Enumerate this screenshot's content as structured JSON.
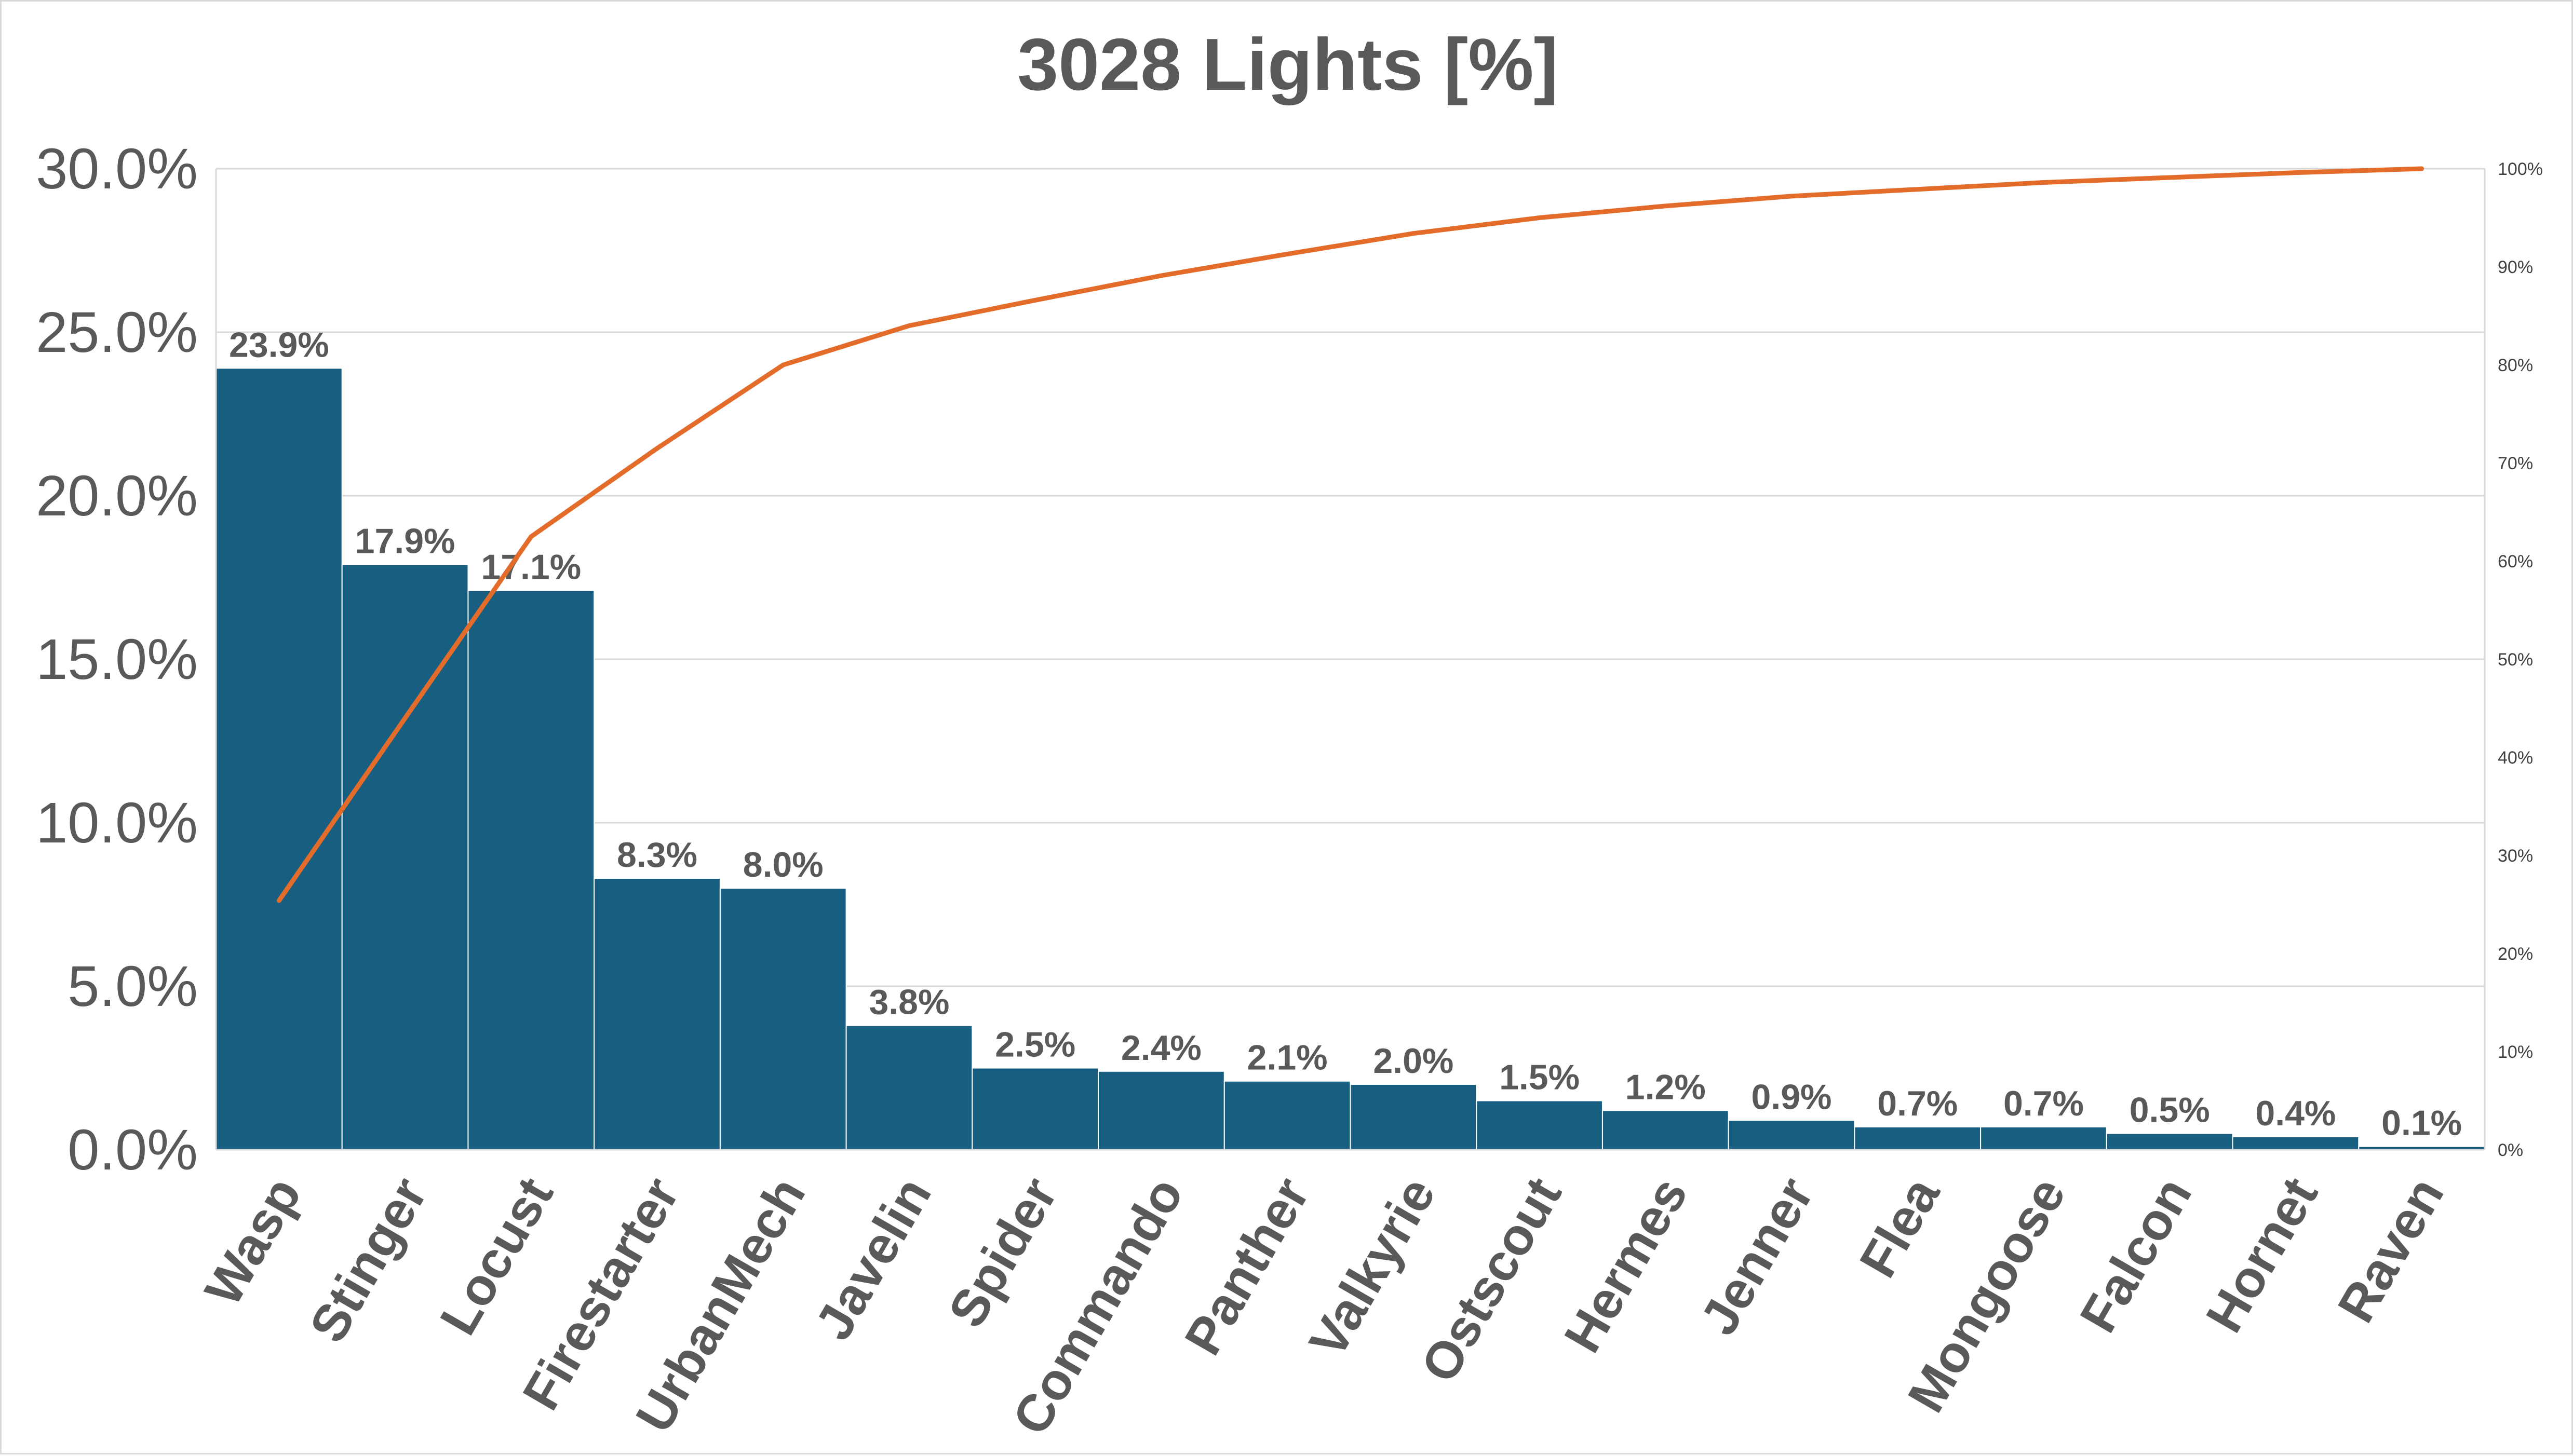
{
  "chart_data": {
    "type": "bar",
    "title": "3028 Lights [%]",
    "categories": [
      "Wasp",
      "Stinger",
      "Locust",
      "Firestarter",
      "UrbanMech",
      "Javelin",
      "Spider",
      "Commando",
      "Panther",
      "Valkyrie",
      "Ostscout",
      "Hermes",
      "Jenner",
      "Flea",
      "Mongoose",
      "Falcon",
      "Hornet",
      "Raven"
    ],
    "values": [
      23.9,
      17.9,
      17.1,
      8.3,
      8.0,
      3.8,
      2.5,
      2.4,
      2.1,
      2.0,
      1.5,
      1.2,
      0.9,
      0.7,
      0.7,
      0.5,
      0.4,
      0.1
    ],
    "data_labels": [
      "23.9%",
      "17.9%",
      "17.1%",
      "8.3%",
      "8.0%",
      "3.8%",
      "2.5%",
      "2.4%",
      "2.1%",
      "2.0%",
      "1.5%",
      "1.2%",
      "0.9%",
      "0.7%",
      "0.7%",
      "0.5%",
      "0.4%",
      "0.1%"
    ],
    "y_ticks": [
      "0.0%",
      "5.0%",
      "10.0%",
      "15.0%",
      "20.0%",
      "25.0%",
      "30.0%"
    ],
    "ylim": [
      0,
      30
    ],
    "cumulative_line": {
      "values": [
        25.4,
        44.0,
        62.5,
        71.5,
        80.0,
        84.0,
        86.6,
        89.1,
        91.3,
        93.4,
        95.0,
        96.2,
        97.2,
        97.9,
        98.6,
        99.1,
        99.6,
        100.0
      ],
      "color": "#E46C2A"
    },
    "y2_ticks": [
      "0%",
      "10%",
      "20%",
      "30%",
      "40%",
      "50%",
      "60%",
      "70%",
      "80%",
      "90%",
      "100%"
    ],
    "y2lim": [
      0,
      100
    ],
    "bar_color": "#175E80",
    "grid": true,
    "legend": "none"
  }
}
